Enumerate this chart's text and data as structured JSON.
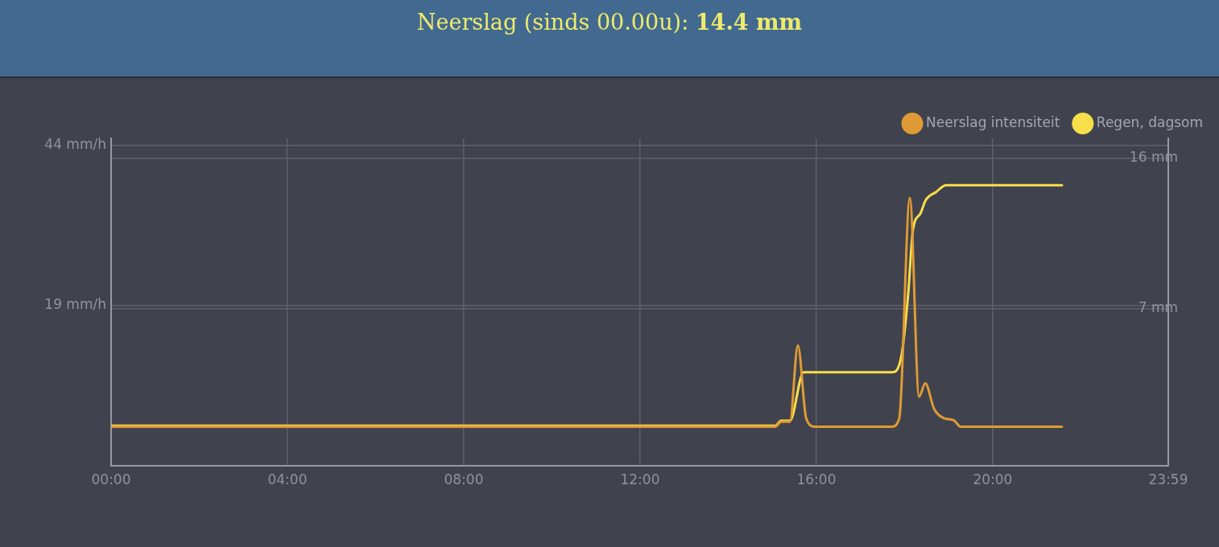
{
  "chart_data": {
    "type": "line",
    "title": "Neerslag (sinds 00.00u): 14.4 mm",
    "series": [
      {
        "name": "Neerslag intensiteit",
        "color": "#e09a35",
        "x": [
          0,
          15.07,
          15.2,
          15.4,
          15.58,
          15.77,
          15.98,
          17.7,
          17.88,
          18.12,
          18.33,
          18.47,
          18.67,
          18.91,
          19.12,
          19.27,
          21.57
        ],
        "values": [
          0,
          0,
          0.8,
          0.8,
          12.7,
          1.3,
          0,
          0,
          1.3,
          35.8,
          4.7,
          6.8,
          2.8,
          1.3,
          1.0,
          0,
          0
        ]
      },
      {
        "name": "Regen, dagsom",
        "color": "#f7df4a",
        "axis": "y2",
        "x": [
          0,
          15.07,
          15.2,
          15.4,
          15.71,
          17.72,
          17.93,
          18.08,
          18.19,
          18.36,
          18.48,
          18.72,
          18.94,
          21.57
        ],
        "values": [
          0,
          0,
          0.3,
          0.3,
          3.2,
          3.2,
          4.2,
          7.8,
          11.7,
          12.7,
          13.5,
          14.0,
          14.4,
          14.4
        ]
      }
    ],
    "xlim": [
      0,
      23.983
    ],
    "xticks": [
      {
        "value": 0,
        "label": "00:00"
      },
      {
        "value": 4,
        "label": "04:00"
      },
      {
        "value": 8,
        "label": "08:00"
      },
      {
        "value": 12,
        "label": "12:00"
      },
      {
        "value": 16,
        "label": "16:00"
      },
      {
        "value": 20,
        "label": "20:00"
      },
      {
        "value": 23.983,
        "label": "23:59"
      }
    ],
    "ylim": [
      -6.1,
      45.1
    ],
    "yticks": [
      {
        "value": 19,
        "label": "19 mm/h"
      },
      {
        "value": 44,
        "label": "44 mm/h"
      }
    ],
    "y2lim": [
      -2.4,
      17.2
    ],
    "y2ticks": [
      {
        "value": 7,
        "label": "7 mm"
      },
      {
        "value": 16,
        "label": "16 mm"
      }
    ],
    "grid": true,
    "legend": "top right",
    "marker": "none"
  }
}
